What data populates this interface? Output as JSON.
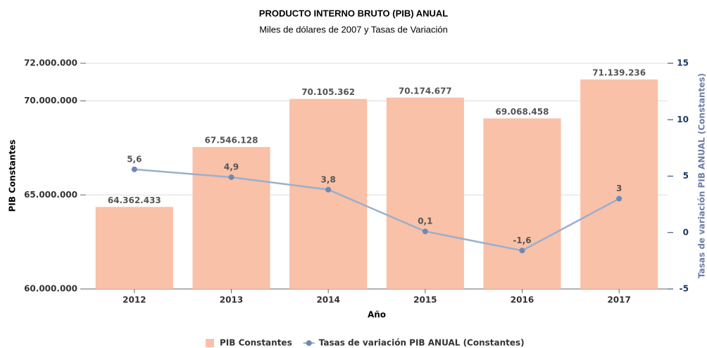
{
  "chart_data": {
    "type": "bar",
    "title": "PRODUCTO INTERNO BRUTO (PIB) ANUAL",
    "subtitle": "Miles de dólares de 2007 y Tasas de Variación",
    "x_label": "Año",
    "y_label": "PIB Constantes",
    "y2_label": "Tasas de variación PIB ANUAL (Constantes)",
    "categories": [
      "2012",
      "2013",
      "2014",
      "2015",
      "2016",
      "2017"
    ],
    "series": [
      {
        "name": "PIB Constantes",
        "type": "bar",
        "color": "#f9c1a8",
        "values": [
          64362433,
          67546128,
          70105362,
          70174677,
          69068458,
          71139236
        ],
        "value_labels": [
          "64.362.433",
          "67.546.128",
          "70.105.362",
          "70.174.677",
          "69.068.458",
          "71.139.236"
        ]
      },
      {
        "name": "Tasas de variación PIB ANUAL (Constantes)",
        "type": "line",
        "axis": "y2",
        "color": "#9aafcc",
        "values": [
          5.6,
          4.9,
          3.8,
          0.1,
          -1.6,
          3
        ],
        "value_labels": [
          "5,6",
          "4,9",
          "3,8",
          "0,1",
          "-1,6",
          "3"
        ]
      }
    ],
    "ylim": [
      60000000,
      72000000
    ],
    "yticks": [
      {
        "value": 60000000,
        "label": "60.000.000"
      },
      {
        "value": 65000000,
        "label": "65.000.000"
      },
      {
        "value": 70000000,
        "label": "70.000.000"
      },
      {
        "value": 72000000,
        "label": "72.000.000"
      }
    ],
    "y2lim": [
      -5,
      15
    ],
    "y2ticks": [
      -5,
      0,
      5,
      10,
      15
    ],
    "grid": true,
    "legend": "bottom"
  }
}
